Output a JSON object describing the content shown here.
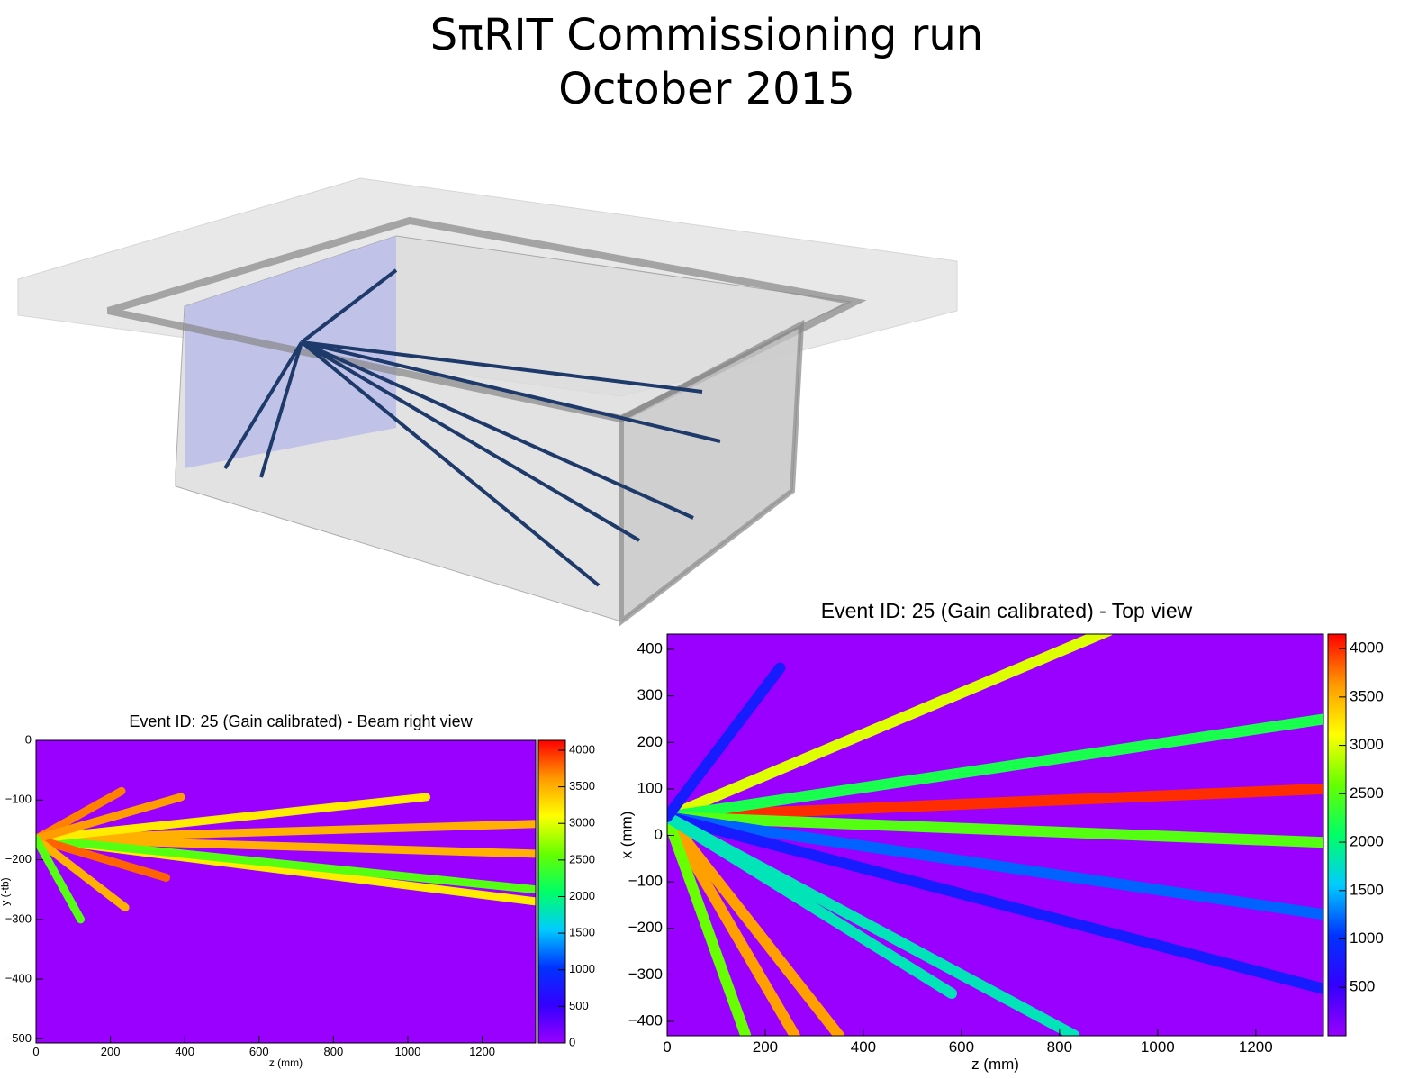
{
  "page": {
    "title_lines": [
      "SπRIT Commissioning run",
      "October 2015"
    ]
  },
  "chart_data": [
    {
      "type": "heatmap",
      "title": "Event ID: 25 (Gain calibrated) - Beam right view",
      "x_label": "z (mm)",
      "y_label": "y (-tb)",
      "xlim": [
        0,
        1344
      ],
      "ylim": [
        -507,
        0
      ],
      "xticks": [
        0,
        200,
        400,
        600,
        800,
        1000,
        1200
      ],
      "yticks": [
        {
          "value": -500,
          "label": "−500"
        },
        {
          "value": -400,
          "label": "−400"
        },
        {
          "value": -300,
          "label": "−300"
        },
        {
          "value": -200,
          "label": "−200"
        },
        {
          "value": -100,
          "label": "−100"
        },
        0
      ],
      "zlim": [
        0,
        4135
      ],
      "zticks": [
        0,
        500,
        1000,
        1500,
        2000,
        2500,
        3000,
        3500,
        4000
      ],
      "colormap": [
        "#9900ff",
        "#3300ff",
        "#0033ff",
        "#00ccff",
        "#00ff66",
        "#66ff00",
        "#ffff00",
        "#ff9900",
        "#ff0000"
      ],
      "tracks": [
        {
          "x": [
            0,
            1344
          ],
          "y": [
            -165,
            -140
          ],
          "value": 3500
        },
        {
          "x": [
            0,
            1344
          ],
          "y": [
            -165,
            -190
          ],
          "value": 3500
        },
        {
          "x": [
            0,
            1344
          ],
          "y": [
            -165,
            -270
          ],
          "value": 3200
        },
        {
          "x": [
            0,
            1344
          ],
          "y": [
            -165,
            -250
          ],
          "value": 2500
        },
        {
          "x": [
            0,
            1050
          ],
          "y": [
            -165,
            -95
          ],
          "value": 3200
        },
        {
          "x": [
            0,
            350
          ],
          "y": [
            -165,
            -230
          ],
          "value": 3800
        },
        {
          "x": [
            0,
            240
          ],
          "y": [
            -165,
            -280
          ],
          "value": 3500
        },
        {
          "x": [
            0,
            230
          ],
          "y": [
            -165,
            -85
          ],
          "value": 3700
        },
        {
          "x": [
            0,
            390
          ],
          "y": [
            -165,
            -95
          ],
          "value": 3600
        },
        {
          "x": [
            0,
            120
          ],
          "y": [
            -165,
            -300
          ],
          "value": 2500
        }
      ]
    },
    {
      "type": "heatmap",
      "title": "Event ID: 25 (Gain calibrated) - Top view",
      "x_label": "z (mm)",
      "y_label": "x (mm)",
      "xlim": [
        0,
        1338
      ],
      "ylim": [
        -431,
        433
      ],
      "xticks": [
        0,
        200,
        400,
        600,
        800,
        1000,
        1200
      ],
      "yticks": [
        {
          "value": -400,
          "label": "−400"
        },
        {
          "value": -300,
          "label": "−300"
        },
        {
          "value": -200,
          "label": "−200"
        },
        {
          "value": -100,
          "label": "−100"
        },
        0,
        100,
        200,
        300,
        400
      ],
      "zlim": [
        0,
        4150
      ],
      "zticks": [
        500,
        1000,
        1500,
        2000,
        2500,
        3000,
        3500,
        4000
      ],
      "colormap": [
        "#9900ff",
        "#3300ff",
        "#0033ff",
        "#00ccff",
        "#00ff66",
        "#66ff00",
        "#ffff00",
        "#ff9900",
        "#ff0000"
      ],
      "tracks": [
        {
          "x": [
            0,
            900
          ],
          "y": [
            40,
            440
          ],
          "value": 3000
        },
        {
          "x": [
            0,
            1338
          ],
          "y": [
            40,
            100
          ],
          "value": 4000
        },
        {
          "x": [
            0,
            1338
          ],
          "y": [
            40,
            250
          ],
          "value": 2200
        },
        {
          "x": [
            0,
            1338
          ],
          "y": [
            40,
            -15
          ],
          "value": 2500
        },
        {
          "x": [
            0,
            1338
          ],
          "y": [
            40,
            -170
          ],
          "value": 1200
        },
        {
          "x": [
            0,
            1338
          ],
          "y": [
            40,
            -330
          ],
          "value": 800
        },
        {
          "x": [
            0,
            830
          ],
          "y": [
            40,
            -430
          ],
          "value": 1800
        },
        {
          "x": [
            0,
            350
          ],
          "y": [
            40,
            -430
          ],
          "value": 3600
        },
        {
          "x": [
            0,
            260
          ],
          "y": [
            40,
            -430
          ],
          "value": 3600
        },
        {
          "x": [
            0,
            160
          ],
          "y": [
            40,
            -430
          ],
          "value": 2600
        },
        {
          "x": [
            0,
            580
          ],
          "y": [
            40,
            -340
          ],
          "value": 1800
        },
        {
          "x": [
            0,
            230
          ],
          "y": [
            40,
            360
          ],
          "value": 800
        }
      ]
    }
  ]
}
